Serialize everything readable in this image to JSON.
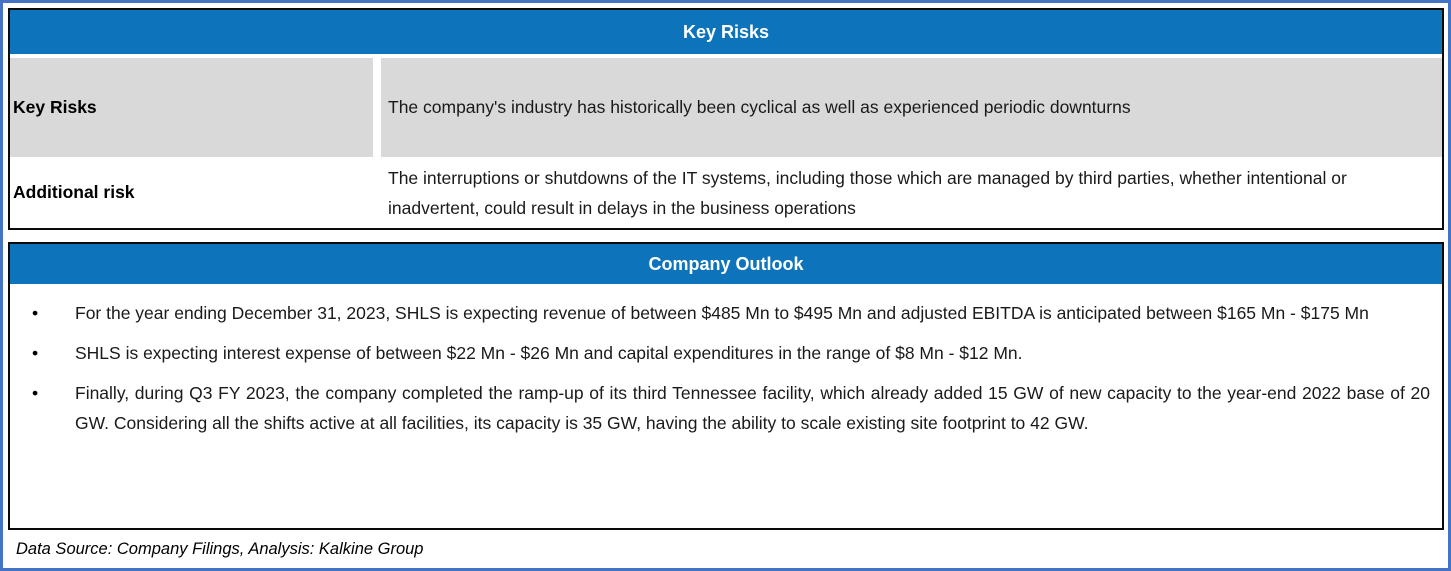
{
  "colors": {
    "header_bg": "#0D74BC",
    "header_text": "#FFFFFF",
    "row_gray": "#D9D9D9",
    "outer_frame_blue": "#4472C4",
    "table_border": "#0A0A0A"
  },
  "key_risks_table": {
    "title": "Key Risks",
    "rows": [
      {
        "label": "Key Risks",
        "text": "The company's industry has historically been cyclical as well as experienced periodic downturns"
      },
      {
        "label": "Additional risk",
        "text": "The interruptions or shutdowns of the IT systems, including those which are managed by third parties, whether intentional or inadvertent, could result in delays in the business operations"
      }
    ]
  },
  "company_outlook": {
    "title": "Company Outlook",
    "bullet_glyph": "•",
    "bullets": [
      "For the year ending December 31, 2023, SHLS is expecting revenue of between $485 Mn to $495 Mn and adjusted EBITDA is anticipated between $165 Mn - $175 Mn",
      "SHLS is expecting interest expense of between $22 Mn - $26 Mn and capital expenditures in the range of $8 Mn - $12 Mn.",
      "Finally, during Q3 FY 2023, the company completed the ramp-up of its third Tennessee facility, which already added 15 GW of new capacity to the year-end 2022 base of 20 GW. Considering all the shifts active at all facilities, its capacity is 35 GW, having the ability to scale existing site footprint to 42 GW."
    ]
  },
  "footer": {
    "text": "Data Source: Company Filings, Analysis: Kalkine Group"
  }
}
